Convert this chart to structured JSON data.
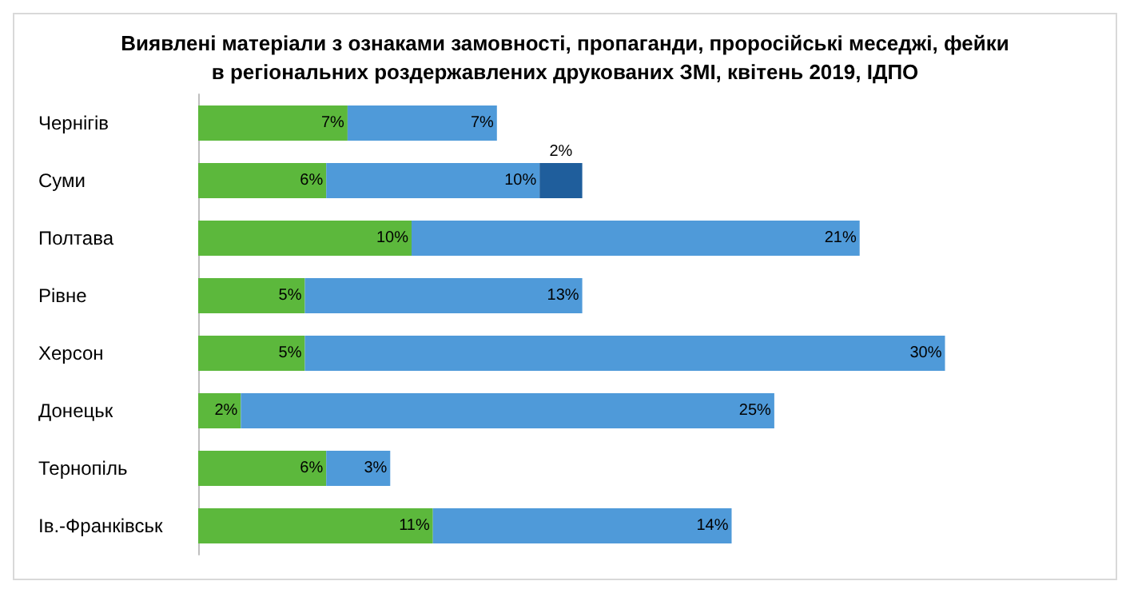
{
  "chart_data": {
    "type": "bar",
    "orientation": "horizontal",
    "stacked": true,
    "title": "Виявлені матеріали з ознаками замовності, пропаганди, проросійські меседжі, фейки\nв регіональних роздержавлених друкованих ЗМІ, квітень 2019, ІДПО",
    "categories": [
      "Чернігів",
      "Суми",
      "Полтава",
      "Рівне",
      "Херсон",
      "Донецьк",
      "Тернопіль",
      "Ів.-Франківськ"
    ],
    "series": [
      {
        "color": "#5cb83c",
        "values": [
          7,
          6,
          10,
          5,
          5,
          2,
          6,
          11
        ],
        "value_labels": [
          "7%",
          "6%",
          "10%",
          "5%",
          "5%",
          "2%",
          "6%",
          "11%"
        ]
      },
      {
        "color": "#4f9ad9",
        "values": [
          7,
          10,
          21,
          13,
          30,
          25,
          3,
          14
        ],
        "value_labels": [
          "7%",
          "10%",
          "21%",
          "13%",
          "30%",
          "25%",
          "3%",
          "14%"
        ]
      },
      {
        "color": "#1f5e9c",
        "values": [
          null,
          2,
          null,
          null,
          null,
          null,
          null,
          null
        ],
        "value_labels": [
          null,
          "2%",
          null,
          null,
          null,
          null,
          null,
          null
        ]
      }
    ],
    "grid": false
  }
}
